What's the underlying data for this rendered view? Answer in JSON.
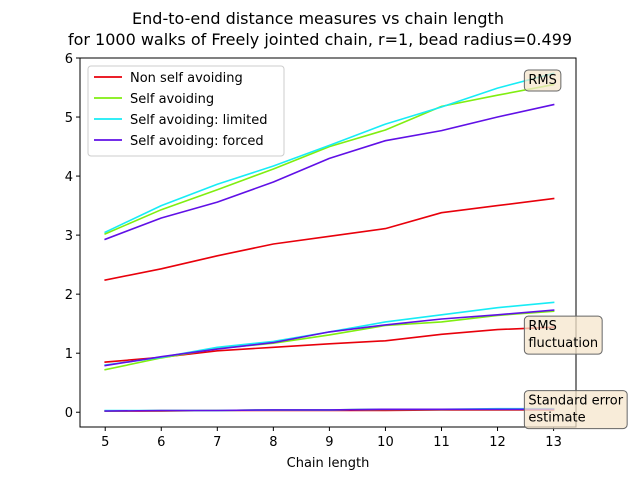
{
  "chart_data": {
    "type": "line",
    "title": "End-to-end distance measures vs chain length",
    "subtitle": "for 1000 walks of Freely jointed chain, r=1, bead radius=0.499",
    "xlabel": "Chain length",
    "ylabel": "",
    "xlim": [
      4.55,
      13.4
    ],
    "ylim": [
      -0.25,
      6.0
    ],
    "x": [
      5,
      6,
      7,
      8,
      9,
      10,
      11,
      12,
      13
    ],
    "xticks": [
      5,
      6,
      7,
      8,
      9,
      10,
      11,
      12,
      13
    ],
    "yticks": [
      0,
      1,
      2,
      3,
      4,
      5,
      6
    ],
    "grid": false,
    "legend_position": "top-left",
    "series": [
      {
        "name": "Non self avoiding",
        "color": "#e8000b",
        "rms": [
          2.24,
          2.43,
          2.65,
          2.85,
          2.98,
          3.11,
          3.38,
          3.5,
          3.62
        ],
        "rms_fluctuation": [
          0.85,
          0.93,
          1.04,
          1.1,
          1.16,
          1.21,
          1.32,
          1.4,
          1.44
        ],
        "standard_error": [
          0.02,
          0.02,
          0.03,
          0.03,
          0.03,
          0.03,
          0.04,
          0.04,
          0.04
        ]
      },
      {
        "name": "Self avoiding",
        "color": "#80ee10",
        "rms": [
          3.02,
          3.43,
          3.77,
          4.12,
          4.5,
          4.78,
          5.18,
          5.37,
          5.55
        ],
        "rms_fluctuation": [
          0.72,
          0.92,
          1.08,
          1.17,
          1.31,
          1.47,
          1.53,
          1.64,
          1.71
        ],
        "standard_error": [
          0.02,
          0.03,
          0.03,
          0.04,
          0.04,
          0.05,
          0.05,
          0.05,
          0.05
        ]
      },
      {
        "name": "Self avoiding: limited",
        "color": "#17ecf5",
        "rms": [
          3.05,
          3.5,
          3.86,
          4.17,
          4.52,
          4.88,
          5.17,
          5.49,
          5.74
        ],
        "rms_fluctuation": [
          0.8,
          0.93,
          1.1,
          1.2,
          1.36,
          1.53,
          1.65,
          1.77,
          1.86
        ],
        "standard_error": [
          0.03,
          0.03,
          0.03,
          0.04,
          0.04,
          0.05,
          0.05,
          0.06,
          0.06
        ]
      },
      {
        "name": "Self avoiding: forced",
        "color": "#6010e6",
        "rms": [
          2.93,
          3.29,
          3.56,
          3.9,
          4.3,
          4.6,
          4.77,
          5.0,
          5.21
        ],
        "rms_fluctuation": [
          0.79,
          0.94,
          1.07,
          1.18,
          1.36,
          1.48,
          1.58,
          1.65,
          1.73
        ],
        "standard_error": [
          0.02,
          0.03,
          0.03,
          0.04,
          0.04,
          0.05,
          0.05,
          0.05,
          0.05
        ]
      }
    ],
    "annotations": [
      {
        "text": "RMS",
        "x": 12.55,
        "y": 5.56
      },
      {
        "text": "RMS\nfluctuation",
        "x": 12.55,
        "y": 1.39
      },
      {
        "text": "Standard error\nestimate",
        "x": 12.55,
        "y": 0.13
      }
    ],
    "annotation_box_fill": "#f5e6cc",
    "annotation_box_edge": "#666666"
  }
}
